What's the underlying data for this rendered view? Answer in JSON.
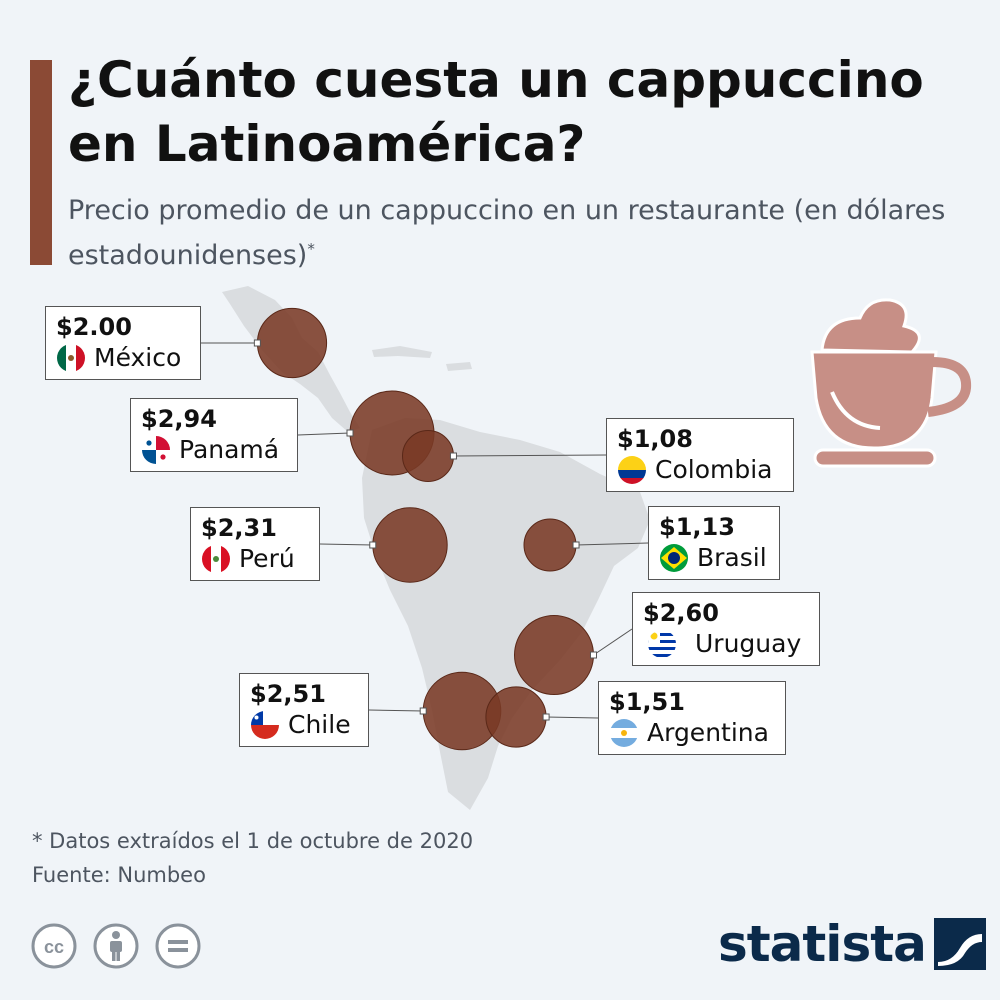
{
  "title": "¿Cuánto cuesta un cappuccino en Latinoamérica?",
  "subtitle": "Precio promedio de un cappuccino en un restaurante (en dólares estadounidenses)",
  "subtitle_mark": "*",
  "colors": {
    "accent": "#8b4a35",
    "bubble": "#7a3a26",
    "map": "#dadde0",
    "brand": "#0b2a4a",
    "cup": "#c78f86"
  },
  "chart_data": {
    "type": "bubble-map",
    "title": "¿Cuánto cuesta un cappuccino en Latinoamérica?",
    "unit": "USD",
    "series": [
      {
        "country": "México",
        "price_label": "$2.00",
        "value": 2.0,
        "flag": "mexico-flag-icon"
      },
      {
        "country": "Panamá",
        "price_label": "$2,94",
        "value": 2.94,
        "flag": "panama-flag-icon"
      },
      {
        "country": "Colombia",
        "price_label": "$1,08",
        "value": 1.08,
        "flag": "colombia-flag-icon"
      },
      {
        "country": "Perú",
        "price_label": "$2,31",
        "value": 2.31,
        "flag": "peru-flag-icon"
      },
      {
        "country": "Brasil",
        "price_label": "$1,13",
        "value": 1.13,
        "flag": "brazil-flag-icon"
      },
      {
        "country": "Uruguay",
        "price_label": "$2,60",
        "value": 2.6,
        "flag": "uruguay-flag-icon"
      },
      {
        "country": "Chile",
        "price_label": "$2,51",
        "value": 2.51,
        "flag": "chile-flag-icon"
      },
      {
        "country": "Argentina",
        "price_label": "$1,51",
        "value": 1.51,
        "flag": "argentina-flag-icon"
      }
    ]
  },
  "footer": {
    "note": "* Datos extraídos el 1 de octubre de 2020",
    "source": "Fuente: Numbeo",
    "license_icons": [
      "cc-icon",
      "attribution-icon",
      "no-derivatives-icon"
    ],
    "brand": "statista"
  }
}
